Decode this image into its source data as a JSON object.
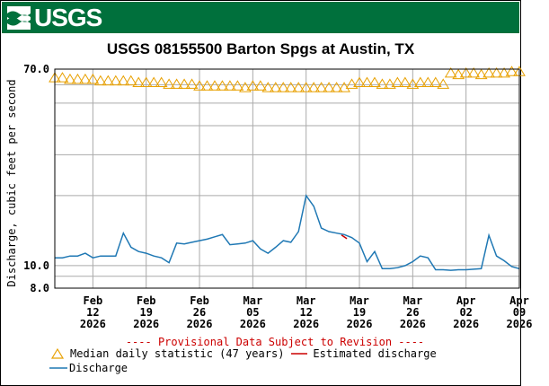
{
  "header": {
    "logo_text": "USGS",
    "banner_color": "#00703c"
  },
  "colors": {
    "median": "#e8a000",
    "discharge": "#1f78b4",
    "estimated": "#cc0000",
    "grid": "#aaaaaa",
    "provisional": "#cc0000"
  },
  "provisional_note": "---- Provisional Data Subject to Revision ----",
  "legend": {
    "median_label": "Median daily statistic (47 years)",
    "estimated_label": "Estimated discharge",
    "discharge_label": "Discharge"
  },
  "chart_data": {
    "type": "line",
    "title": "USGS 08155500 Barton Spgs at Austin, TX",
    "ylabel": "Discharge, cubic feet per second",
    "xlabel": "",
    "y_scale": "log",
    "ylim": [
      8.0,
      70.0
    ],
    "y_tick_labels": [
      "70.0",
      "10.0",
      "8.0"
    ],
    "x_range": [
      "2026-02-07",
      "2026-04-09"
    ],
    "x_ticks": [
      {
        "date": "2026-02-12",
        "label": [
          "Feb",
          "12",
          "2026"
        ]
      },
      {
        "date": "2026-02-19",
        "label": [
          "Feb",
          "19",
          "2026"
        ]
      },
      {
        "date": "2026-02-26",
        "label": [
          "Feb",
          "26",
          "2026"
        ]
      },
      {
        "date": "2026-03-05",
        "label": [
          "Mar",
          "05",
          "2026"
        ]
      },
      {
        "date": "2026-03-12",
        "label": [
          "Mar",
          "12",
          "2026"
        ]
      },
      {
        "date": "2026-03-19",
        "label": [
          "Mar",
          "19",
          "2026"
        ]
      },
      {
        "date": "2026-03-26",
        "label": [
          "Mar",
          "26",
          "2026"
        ]
      },
      {
        "date": "2026-04-02",
        "label": [
          "Apr",
          "02",
          "2026"
        ]
      },
      {
        "date": "2026-04-09",
        "label": [
          "Apr",
          "09",
          "2026"
        ]
      }
    ],
    "grid": true,
    "series": [
      {
        "name": "Median daily statistic (47 years)",
        "marker": "triangle",
        "x": [
          "2026-02-07",
          "2026-02-08",
          "2026-02-09",
          "2026-02-10",
          "2026-02-11",
          "2026-02-12",
          "2026-02-13",
          "2026-02-14",
          "2026-02-15",
          "2026-02-16",
          "2026-02-17",
          "2026-02-18",
          "2026-02-19",
          "2026-02-20",
          "2026-02-21",
          "2026-02-22",
          "2026-02-23",
          "2026-02-24",
          "2026-02-25",
          "2026-02-26",
          "2026-02-27",
          "2026-02-28",
          "2026-03-01",
          "2026-03-02",
          "2026-03-03",
          "2026-03-04",
          "2026-03-05",
          "2026-03-06",
          "2026-03-07",
          "2026-03-08",
          "2026-03-09",
          "2026-03-10",
          "2026-03-11",
          "2026-03-12",
          "2026-03-13",
          "2026-03-14",
          "2026-03-15",
          "2026-03-16",
          "2026-03-17",
          "2026-03-18",
          "2026-03-19",
          "2026-03-20",
          "2026-03-21",
          "2026-03-22",
          "2026-03-23",
          "2026-03-24",
          "2026-03-25",
          "2026-03-26",
          "2026-03-27",
          "2026-03-28",
          "2026-03-29",
          "2026-03-30",
          "2026-03-31",
          "2026-04-01",
          "2026-04-02",
          "2026-04-03",
          "2026-04-04",
          "2026-04-05",
          "2026-04-06",
          "2026-04-07",
          "2026-04-08",
          "2026-04-09"
        ],
        "y": [
          64,
          64,
          63,
          63,
          63,
          63,
          62,
          62,
          62,
          62,
          62,
          61,
          61,
          61,
          61,
          60,
          60,
          60,
          60,
          59,
          59,
          59,
          59,
          59,
          59,
          58,
          59,
          59,
          58,
          58,
          58,
          58,
          58,
          58,
          58,
          58,
          58,
          58,
          58,
          60,
          61,
          61,
          61,
          60,
          60,
          61,
          61,
          60,
          61,
          61,
          61,
          60,
          67,
          66,
          67,
          67,
          66,
          67,
          67,
          67,
          68,
          68
        ]
      },
      {
        "name": "Discharge",
        "x": [
          "2026-02-07",
          "2026-02-08",
          "2026-02-09",
          "2026-02-10",
          "2026-02-11",
          "2026-02-12",
          "2026-02-13",
          "2026-02-14",
          "2026-02-15",
          "2026-02-16",
          "2026-02-17",
          "2026-02-18",
          "2026-02-19",
          "2026-02-20",
          "2026-02-21",
          "2026-02-22",
          "2026-02-23",
          "2026-02-24",
          "2026-02-25",
          "2026-02-26",
          "2026-02-27",
          "2026-02-28",
          "2026-03-01",
          "2026-03-02",
          "2026-03-03",
          "2026-03-04",
          "2026-03-05",
          "2026-03-06",
          "2026-03-07",
          "2026-03-08",
          "2026-03-09",
          "2026-03-10",
          "2026-03-11",
          "2026-03-12",
          "2026-03-13",
          "2026-03-14",
          "2026-03-15",
          "2026-03-16",
          "2026-03-17",
          "2026-03-18",
          "2026-03-19",
          "2026-03-20",
          "2026-03-21",
          "2026-03-22",
          "2026-03-23",
          "2026-03-24",
          "2026-03-25",
          "2026-03-26",
          "2026-03-27",
          "2026-03-28",
          "2026-03-29",
          "2026-03-30",
          "2026-03-31",
          "2026-04-01",
          "2026-04-02",
          "2026-04-03",
          "2026-04-04",
          "2026-04-05",
          "2026-04-06",
          "2026-04-07",
          "2026-04-08",
          "2026-04-09"
        ],
        "y": [
          10.8,
          10.8,
          11.0,
          11.0,
          11.3,
          10.8,
          11.0,
          11.0,
          11.0,
          13.8,
          12.0,
          11.5,
          11.3,
          11.0,
          10.8,
          10.3,
          12.5,
          12.4,
          12.6,
          12.8,
          13.0,
          13.3,
          13.6,
          12.3,
          12.4,
          12.5,
          12.8,
          11.8,
          11.3,
          12.0,
          12.8,
          12.6,
          14.0,
          20.0,
          18.0,
          14.5,
          14.0,
          13.8,
          13.6,
          13.2,
          12.5,
          10.4,
          11.5,
          9.7,
          9.7,
          9.8,
          10.0,
          10.4,
          11.0,
          10.8,
          9.6,
          9.6,
          9.55,
          9.6,
          9.6,
          9.65,
          9.7,
          13.5,
          11.0,
          10.5,
          9.9,
          9.7
        ]
      },
      {
        "name": "Estimated discharge",
        "x": [
          "2026-03-17"
        ],
        "y": [
          13.3
        ]
      }
    ]
  }
}
